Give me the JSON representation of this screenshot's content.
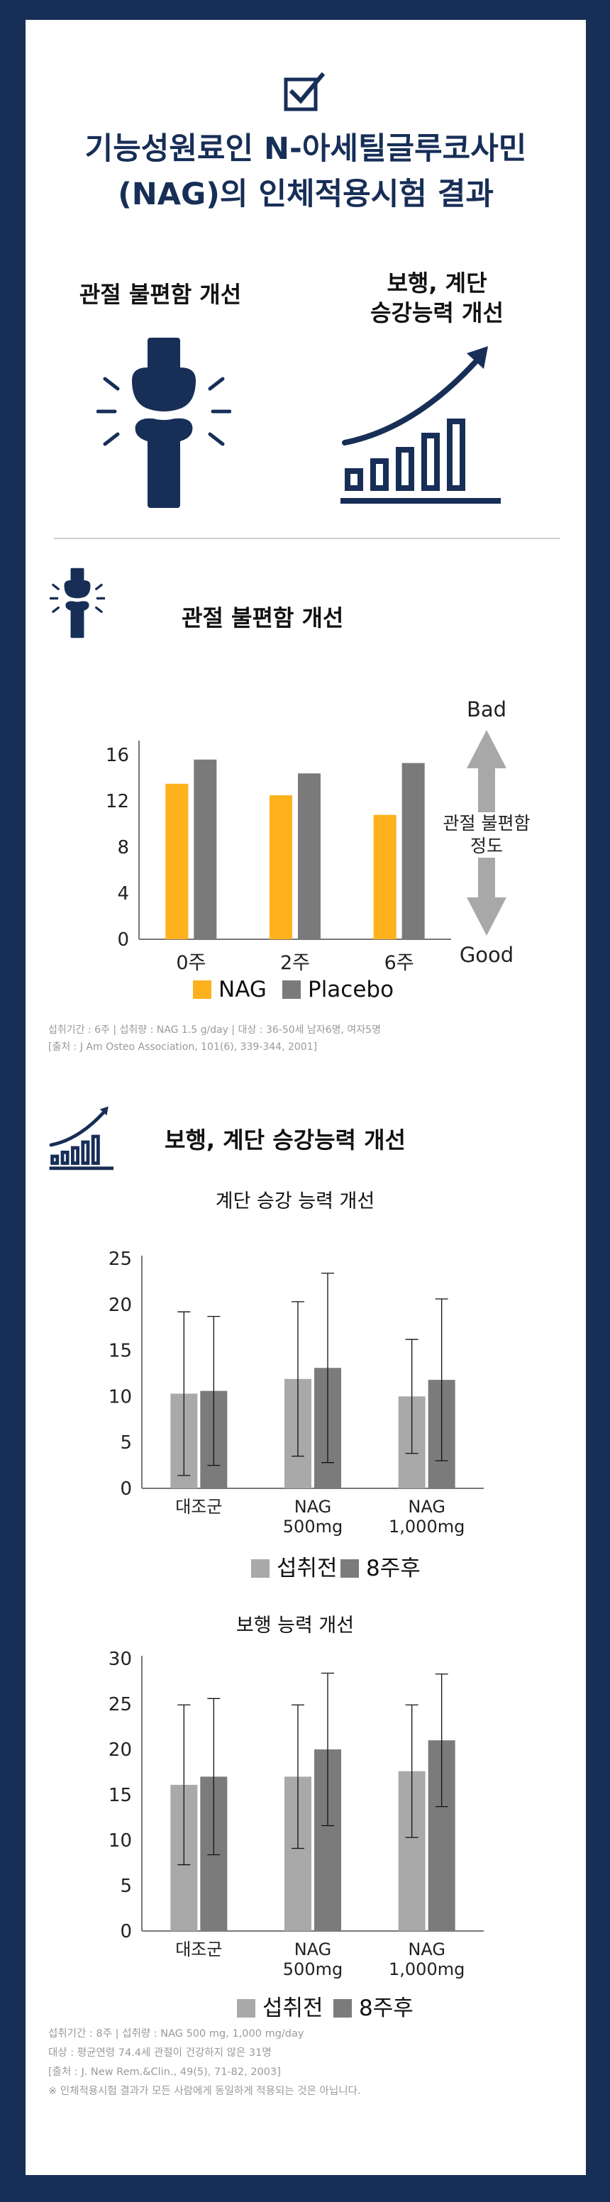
{
  "header": {
    "title_line1": "기능성원료인 N-아세틸글루코사민",
    "title_line2": "(NAG)의 인체적용시험 결과"
  },
  "intro": {
    "joint_label": "관절 불편함 개선",
    "walk_label_line1": "보행, 계단",
    "walk_label_line2": "승강능력 개선"
  },
  "section1": {
    "title": "관절 불편함 개선",
    "scale_top": "Bad",
    "scale_bottom": "Good",
    "scale_label_line1": "관절 불편함",
    "scale_label_line2": "정도",
    "note_line1": "섭취기간 : 6주  |  섭취량 : NAG 1.5 g/day  |  대상 : 36-50세 남자6명, 여자5명",
    "note_line2": "[출처 : J Am Osteo Association, 101(6), 339-344, 2001]"
  },
  "section2": {
    "title": "보행, 계단 승강능력 개선",
    "note_line1": "섭취기간 : 8주  |  섭취량 : NAG 500 mg, 1,000 mg/day",
    "note_line2": "대상 : 평균연령 74.4세 관절이 건강하지 않은 31명",
    "note_line3": "[출처 : J. New Rem.&Clin., 49(5), 71-82, 2003]",
    "note_line4": "※ 인체적용시험 결과가 모든 사람에게 동일하게 적용되는 것은 아닙니다."
  },
  "colors": {
    "navy": "#172e57",
    "nag": "#fdb11c",
    "placebo": "#7a7a7a",
    "before": "#a9a9a9",
    "after": "#7b7b7b"
  },
  "chart_data": [
    {
      "type": "bar",
      "title": "",
      "categories": [
        "0주",
        "2주",
        "6주"
      ],
      "series": [
        {
          "name": "NAG",
          "values": [
            13.5,
            12.5,
            10.8
          ]
        },
        {
          "name": "Placebo",
          "values": [
            15.6,
            14.4,
            15.3
          ]
        }
      ],
      "yticks": [
        "0",
        "4",
        "8",
        "12",
        "16"
      ],
      "ylim": [
        0,
        17
      ],
      "legend": "bottom"
    },
    {
      "type": "bar",
      "title": "계단 승강 능력 개선",
      "categories": [
        "대조군",
        "NAG 500mg",
        "NAG 1,000mg"
      ],
      "category_lines": [
        [
          "대조군"
        ],
        [
          "NAG",
          "500mg"
        ],
        [
          "NAG",
          "1,000mg"
        ]
      ],
      "series": [
        {
          "name": "섭취전",
          "values": [
            10.3,
            11.9,
            10.0
          ],
          "error": [
            8.9,
            8.4,
            6.2
          ]
        },
        {
          "name": "8주후",
          "values": [
            10.6,
            13.1,
            11.8
          ],
          "error": [
            8.1,
            10.3,
            8.8
          ]
        }
      ],
      "yticks": [
        "0",
        "5",
        "10",
        "15",
        "20",
        "25"
      ],
      "ylim": [
        0,
        25
      ],
      "legend": "bottom"
    },
    {
      "type": "bar",
      "title": "보행 능력 개선",
      "categories": [
        "대조군",
        "NAG 500mg",
        "NAG 1,000mg"
      ],
      "category_lines": [
        [
          "대조군"
        ],
        [
          "NAG",
          "500mg"
        ],
        [
          "NAG",
          "1,000mg"
        ]
      ],
      "series": [
        {
          "name": "섭취전",
          "values": [
            16.1,
            17.0,
            17.6
          ],
          "error": [
            8.8,
            7.9,
            7.3
          ]
        },
        {
          "name": "8주후",
          "values": [
            17.0,
            20.0,
            21.0
          ],
          "error": [
            8.6,
            8.4,
            7.3
          ]
        }
      ],
      "yticks": [
        "0",
        "5",
        "10",
        "15",
        "20",
        "25",
        "30"
      ],
      "ylim": [
        0,
        30
      ],
      "legend": "bottom"
    }
  ]
}
